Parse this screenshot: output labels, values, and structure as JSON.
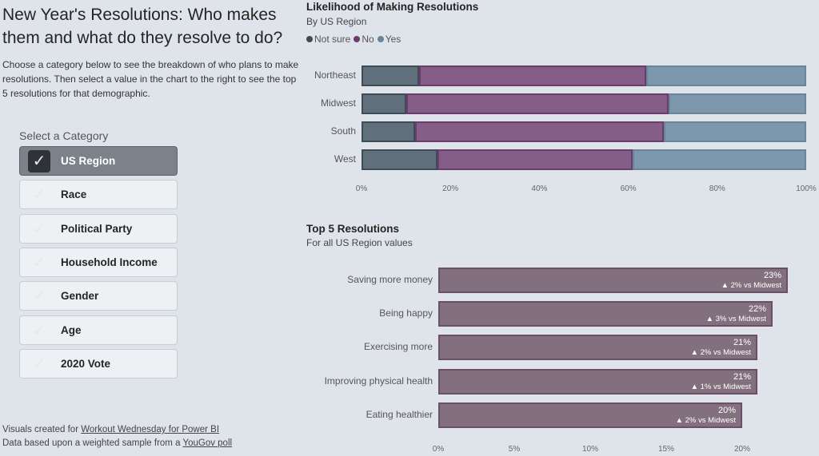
{
  "left": {
    "title": "New Year's Resolutions: Who makes them and what do they resolve to do?",
    "description": "Choose a category below to see the breakdown of who plans to make resolutions. Then select a value in the chart to the right to see the top 5 resolutions for that demographic.",
    "category_label": "Select a Category",
    "categories": [
      {
        "label": "US Region",
        "selected": true
      },
      {
        "label": "Race",
        "selected": false
      },
      {
        "label": "Political Party",
        "selected": false
      },
      {
        "label": "Household Income",
        "selected": false
      },
      {
        "label": "Gender",
        "selected": false
      },
      {
        "label": "Age",
        "selected": false
      },
      {
        "label": "2020 Vote",
        "selected": false
      }
    ],
    "footer": {
      "line1_prefix": "Visuals created for ",
      "line1_link": "Workout Wednesday for Power BI",
      "line2_prefix": "Data based upon a weighted sample from a ",
      "line2_link": "YouGov poll"
    }
  },
  "chart_data": [
    {
      "type": "bar",
      "stacked": "100%",
      "orientation": "horizontal",
      "title": "Likelihood of Making Resolutions",
      "subtitle": "By US Region",
      "legend_position": "top-left",
      "categories": [
        "Northeast",
        "Midwest",
        "South",
        "West"
      ],
      "series": [
        {
          "name": "Not sure",
          "color": "#5f6f7b",
          "border": "#3f4b55",
          "values": [
            13,
            10,
            12,
            17
          ]
        },
        {
          "name": "No",
          "color": "#845e86",
          "border": "#6a3d6c",
          "values": [
            51,
            59,
            56,
            44
          ]
        },
        {
          "name": "Yes",
          "color": "#7d98ad",
          "border": "#6a8499",
          "values": [
            36,
            31,
            32,
            39
          ]
        }
      ],
      "xlim": [
        0,
        100
      ],
      "xticks": [
        "0%",
        "20%",
        "40%",
        "60%",
        "80%",
        "100%"
      ]
    },
    {
      "type": "bar",
      "orientation": "horizontal",
      "title": "Top 5 Resolutions",
      "subtitle": "For all US Region values",
      "categories": [
        "Saving more money",
        "Being happy",
        "Exercising more",
        "Improving physical health",
        "Eating healthier"
      ],
      "values": [
        23,
        22,
        21,
        21,
        20
      ],
      "value_labels": [
        "23%",
        "22%",
        "21%",
        "21%",
        "20%"
      ],
      "comparison_labels": [
        "▲ 2% vs Midwest",
        "▲ 3% vs Midwest",
        "▲ 2% vs Midwest",
        "▲ 1% vs Midwest",
        "▲ 2% vs Midwest"
      ],
      "color": "#83707f",
      "xlim": [
        0,
        25
      ],
      "xticks": [
        "0%",
        "5%",
        "10%",
        "15%",
        "20%"
      ]
    }
  ]
}
